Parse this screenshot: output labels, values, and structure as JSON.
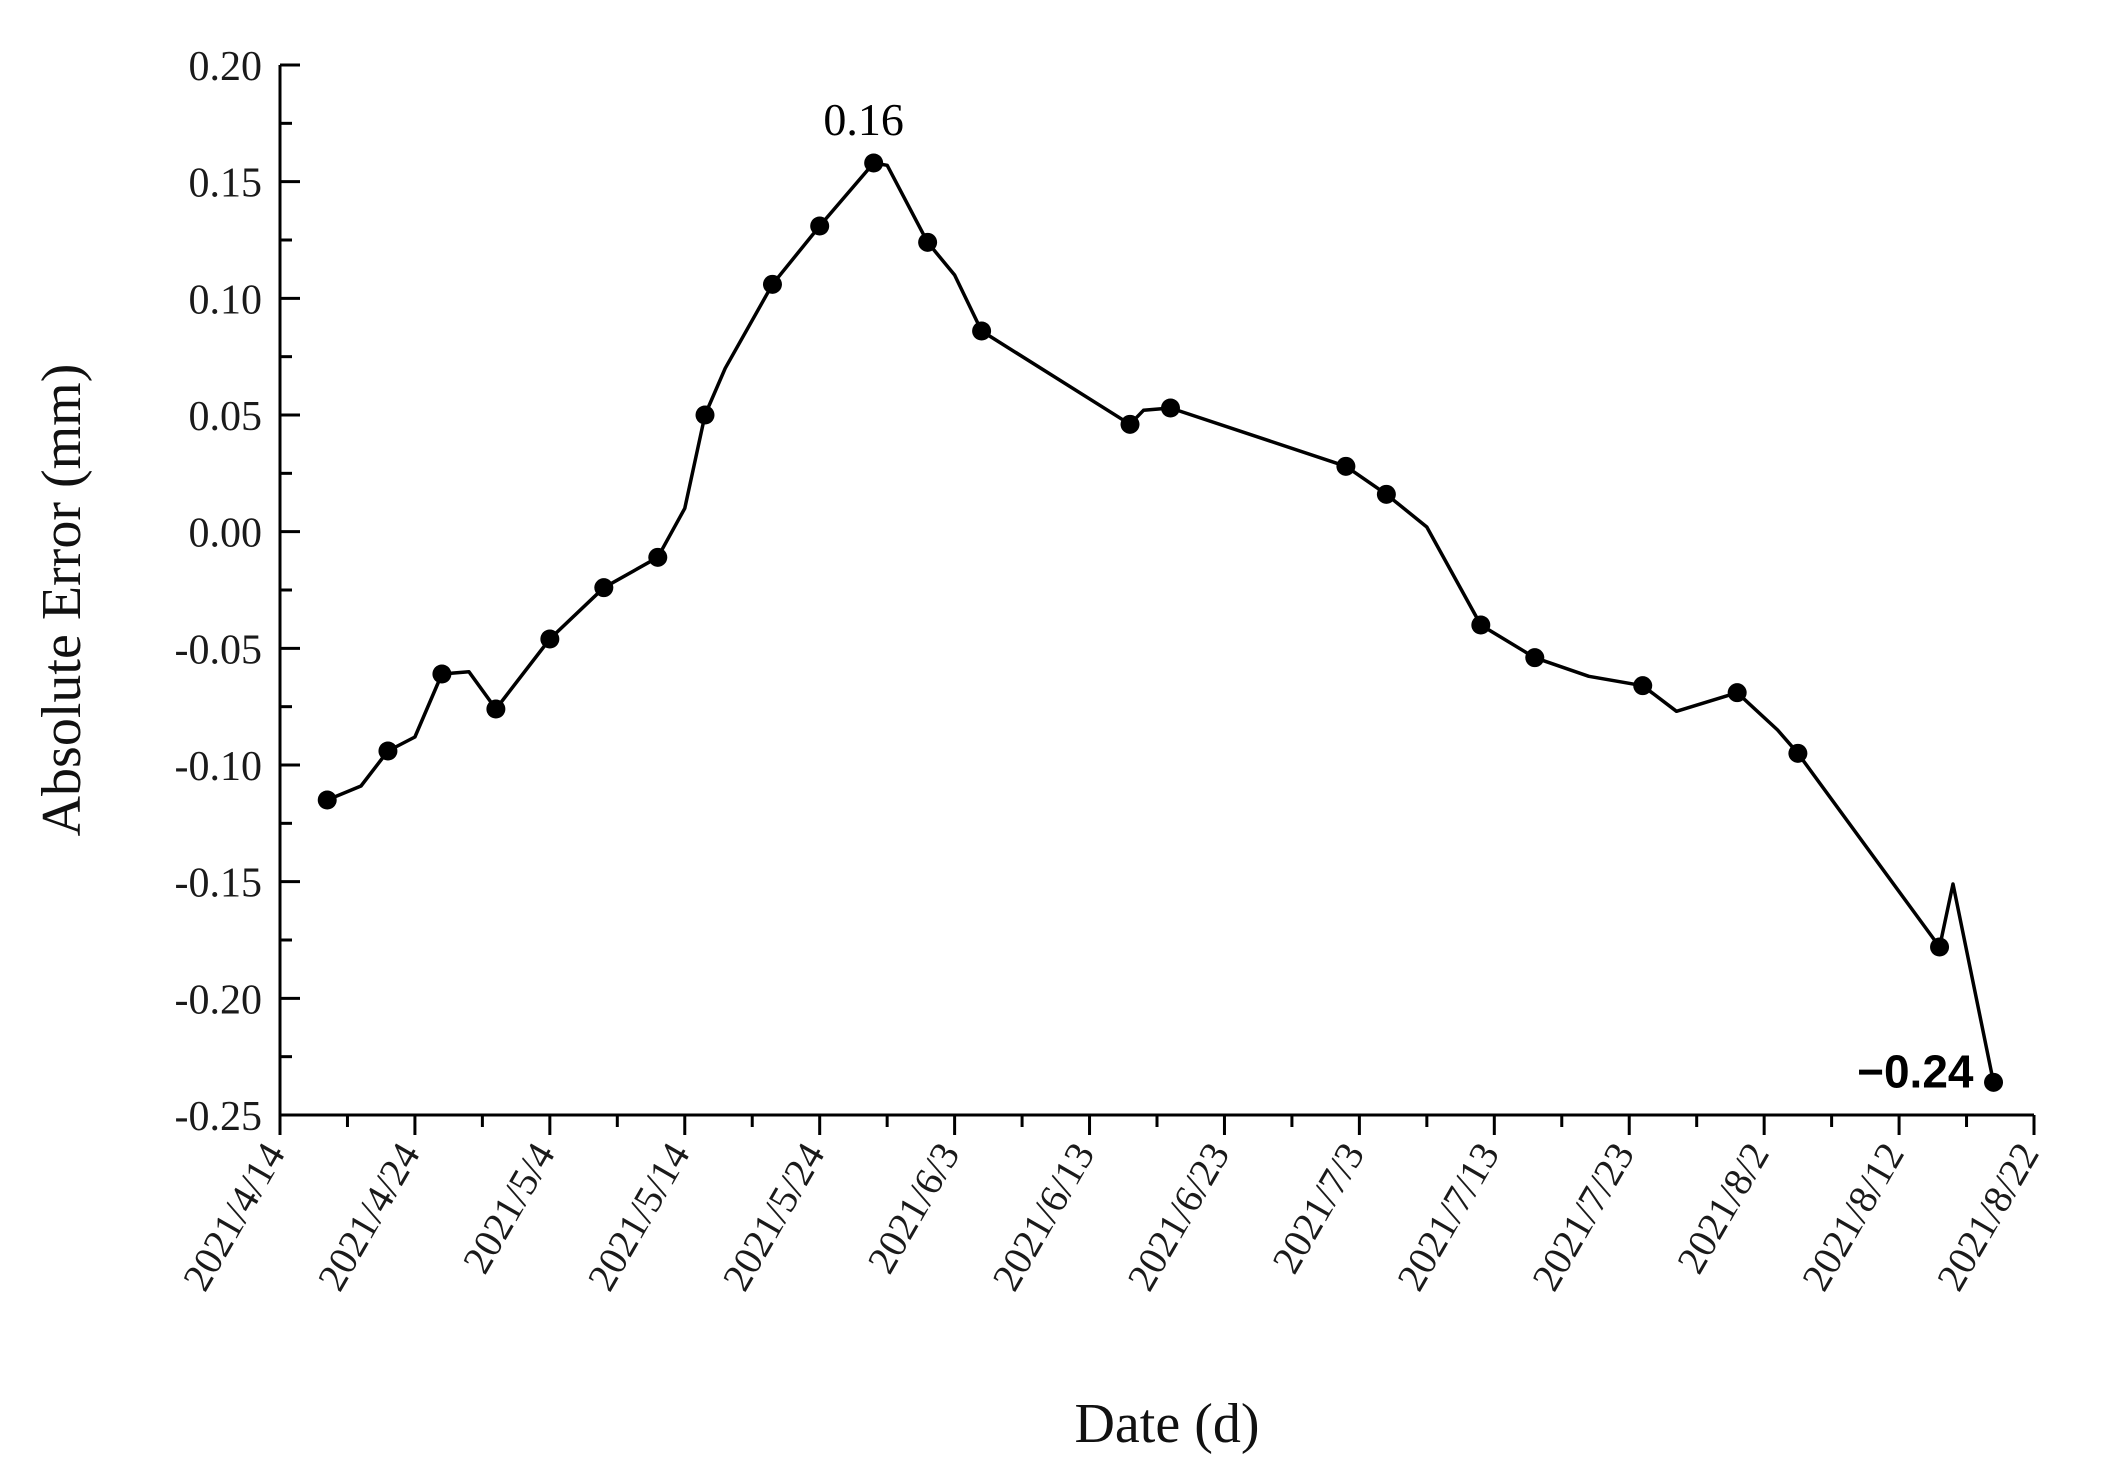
{
  "chart_data": {
    "type": "line",
    "xlabel": "Date (d)",
    "ylabel": "Absolute Error (mm)",
    "x_ticks": [
      "2021/4/14",
      "2021/4/24",
      "2021/5/4",
      "2021/5/14",
      "2021/5/24",
      "2021/6/3",
      "2021/6/13",
      "2021/6/23",
      "2021/7/3",
      "2021/7/13",
      "2021/7/23",
      "2021/8/2",
      "2021/8/12",
      "2021/8/22"
    ],
    "y_ticks": [
      "0.20",
      "0.15",
      "0.10",
      "0.05",
      "0.00",
      "-0.05",
      "-0.10",
      "-0.15",
      "-0.20",
      "-0.25"
    ],
    "xlim": [
      "2021/4/14",
      "2021/8/22"
    ],
    "ylim": [
      -0.25,
      0.2
    ],
    "grid": false,
    "legend": "none",
    "line_color": "#000000",
    "series": [
      {
        "points": [
          {
            "x": "2021/4/17.5",
            "y": -0.115,
            "marker": true
          },
          {
            "x": "2021/4/20",
            "y": -0.109,
            "marker": false
          },
          {
            "x": "2021/4/22",
            "y": -0.094,
            "marker": true
          },
          {
            "x": "2021/4/24",
            "y": -0.088,
            "marker": false
          },
          {
            "x": "2021/4/26",
            "y": -0.061,
            "marker": true
          },
          {
            "x": "2021/4/28",
            "y": -0.06,
            "marker": false
          },
          {
            "x": "2021/4/30",
            "y": -0.076,
            "marker": true
          },
          {
            "x": "2021/5/4",
            "y": -0.046,
            "marker": true
          },
          {
            "x": "2021/5/8",
            "y": -0.024,
            "marker": true
          },
          {
            "x": "2021/5/12",
            "y": -0.011,
            "marker": true
          },
          {
            "x": "2021/5/14",
            "y": 0.01,
            "marker": false
          },
          {
            "x": "2021/5/15.5",
            "y": 0.05,
            "marker": true
          },
          {
            "x": "2021/5/17",
            "y": 0.07,
            "marker": false
          },
          {
            "x": "2021/5/20.5",
            "y": 0.106,
            "marker": true
          },
          {
            "x": "2021/5/24",
            "y": 0.131,
            "marker": true
          },
          {
            "x": "2021/5/28",
            "y": 0.158,
            "marker": true
          },
          {
            "x": "2021/5/29",
            "y": 0.157,
            "marker": false
          },
          {
            "x": "2021/6/1",
            "y": 0.124,
            "marker": true
          },
          {
            "x": "2021/6/3",
            "y": 0.11,
            "marker": false
          },
          {
            "x": "2021/6/5",
            "y": 0.086,
            "marker": true
          },
          {
            "x": "2021/6/16",
            "y": 0.046,
            "marker": true
          },
          {
            "x": "2021/6/17",
            "y": 0.052,
            "marker": false
          },
          {
            "x": "2021/6/19",
            "y": 0.053,
            "marker": true
          },
          {
            "x": "2021/7/2",
            "y": 0.028,
            "marker": true
          },
          {
            "x": "2021/7/5",
            "y": 0.016,
            "marker": true
          },
          {
            "x": "2021/7/8",
            "y": 0.002,
            "marker": false
          },
          {
            "x": "2021/7/12",
            "y": -0.04,
            "marker": true
          },
          {
            "x": "2021/7/16",
            "y": -0.054,
            "marker": true
          },
          {
            "x": "2021/7/20",
            "y": -0.062,
            "marker": false
          },
          {
            "x": "2021/7/24",
            "y": -0.066,
            "marker": true
          },
          {
            "x": "2021/7/26.5",
            "y": -0.077,
            "marker": false
          },
          {
            "x": "2021/7/31",
            "y": -0.069,
            "marker": true
          },
          {
            "x": "2021/8/3",
            "y": -0.085,
            "marker": false
          },
          {
            "x": "2021/8/4.5",
            "y": -0.095,
            "marker": true
          },
          {
            "x": "2021/8/15",
            "y": -0.178,
            "marker": true
          },
          {
            "x": "2021/8/16",
            "y": -0.151,
            "marker": false
          },
          {
            "x": "2021/8/19",
            "y": -0.236,
            "marker": true
          }
        ]
      }
    ],
    "annotations": [
      {
        "text": "0.16",
        "x": "2021/5/28",
        "y": 0.158,
        "position": "above"
      },
      {
        "text": "−0.24",
        "x": "2021/8/19",
        "y": -0.236,
        "position": "left",
        "bold": true
      }
    ]
  }
}
